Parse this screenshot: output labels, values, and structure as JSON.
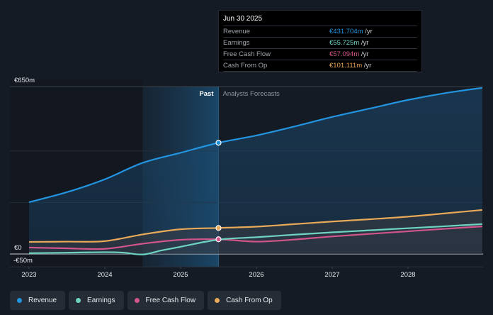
{
  "tooltip": {
    "date": "Jun 30 2025",
    "rows": [
      {
        "label": "Revenue",
        "value": "€431.704m",
        "unit": " /yr",
        "color": "#2394df"
      },
      {
        "label": "Earnings",
        "value": "€55.725m",
        "unit": " /yr",
        "color": "#6fd3c1"
      },
      {
        "label": "Free Cash Flow",
        "value": "€57.094m",
        "unit": " /yr",
        "color": "#d1558a"
      },
      {
        "label": "Cash From Op",
        "value": "€101.111m",
        "unit": " /yr",
        "color": "#e8a958"
      }
    ]
  },
  "chart_data": {
    "type": "line",
    "title": "",
    "xlabel": "",
    "ylabel": "",
    "y_tick_labels": [
      "€650m",
      "€0",
      "-€50m"
    ],
    "x_tick_labels": [
      "2023",
      "2024",
      "2025",
      "2026",
      "2027",
      "2028"
    ],
    "ylim": [
      -50,
      650
    ],
    "xlim": [
      2022.75,
      2029.0
    ],
    "past_label": "Past",
    "forecast_label": "Analysts Forecasts",
    "past_forecast_split": 2025.5,
    "highlight_x": 2025.5,
    "series": [
      {
        "name": "Revenue",
        "color": "#2394df",
        "x": [
          2023.0,
          2023.5,
          2024.0,
          2024.5,
          2025.0,
          2025.5,
          2026.0,
          2026.5,
          2027.0,
          2027.5,
          2028.0,
          2028.5,
          2028.98
        ],
        "values": [
          201,
          240,
          290,
          354,
          393,
          431.7,
          460,
          495,
          532,
          565,
          598,
          625,
          645
        ]
      },
      {
        "name": "Earnings",
        "color": "#6fd3c1",
        "x": [
          2023.0,
          2023.5,
          2024.0,
          2024.25,
          2024.5,
          2024.75,
          2025.0,
          2025.5,
          2026.0,
          2026.5,
          2027.0,
          2027.5,
          2028.0,
          2028.5,
          2028.98
        ],
        "values": [
          3,
          5,
          7,
          5,
          -2,
          14,
          28,
          55.7,
          65,
          75,
          84,
          92,
          100,
          108,
          116
        ]
      },
      {
        "name": "Free Cash Flow",
        "color": "#d1558a",
        "x": [
          2023.0,
          2023.5,
          2024.0,
          2024.5,
          2025.0,
          2025.5,
          2026.0,
          2026.5,
          2027.0,
          2027.5,
          2028.0,
          2028.5,
          2028.98
        ],
        "values": [
          25,
          22,
          20,
          40,
          55,
          57.1,
          48,
          56,
          68,
          78,
          88,
          98,
          107
        ]
      },
      {
        "name": "Cash From Op",
        "color": "#e8a958",
        "x": [
          2023.0,
          2023.5,
          2024.0,
          2024.5,
          2025.0,
          2025.5,
          2026.0,
          2026.5,
          2027.0,
          2027.5,
          2028.0,
          2028.5,
          2028.98
        ],
        "values": [
          47,
          48,
          50,
          76,
          96,
          101.1,
          106,
          116,
          126,
          135,
          145,
          158,
          171
        ]
      }
    ],
    "legend_position": "bottom-left",
    "grid": true
  },
  "legend": [
    {
      "label": "Revenue",
      "color": "#2394df"
    },
    {
      "label": "Earnings",
      "color": "#6fd3c1"
    },
    {
      "label": "Free Cash Flow",
      "color": "#d1558a"
    },
    {
      "label": "Cash From Op",
      "color": "#e8a958"
    }
  ]
}
